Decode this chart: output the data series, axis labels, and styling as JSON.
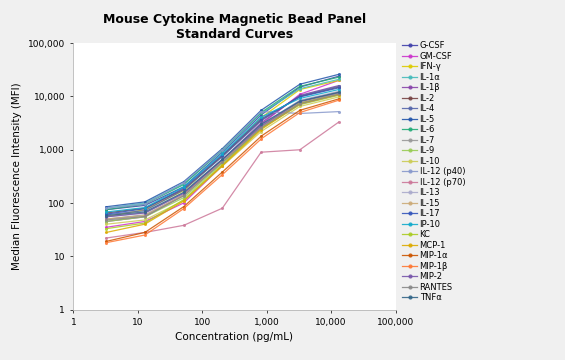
{
  "title": "Mouse Cytokine Magnetic Bead Panel\nStandard Curves",
  "xlabel": "Concentration (pg/mL)",
  "ylabel": "Median Fluorescence Intensity (MFI)",
  "xlim": [
    1,
    100000
  ],
  "ylim": [
    1,
    100000
  ],
  "x_points": [
    3.2,
    12.8,
    51.2,
    204.8,
    819.2,
    3276.8,
    13107.2
  ],
  "series": [
    {
      "label": "G-CSF",
      "color": "#4040aa",
      "marker": "o",
      "y": [
        75,
        90,
        200,
        900,
        4500,
        15000,
        24000
      ]
    },
    {
      "label": "GM-CSF",
      "color": "#cc33cc",
      "marker": "o",
      "y": [
        35,
        45,
        100,
        500,
        3000,
        11000,
        20000
      ]
    },
    {
      "label": "IFN-γ",
      "color": "#ddcc00",
      "marker": "o",
      "y": [
        55,
        75,
        170,
        780,
        4000,
        13500,
        20000
      ]
    },
    {
      "label": "IL-1α",
      "color": "#44bbbb",
      "marker": "o",
      "y": [
        80,
        100,
        230,
        950,
        4800,
        14000,
        21000
      ]
    },
    {
      "label": "IL-1β",
      "color": "#8844aa",
      "marker": "o",
      "y": [
        45,
        55,
        140,
        650,
        3200,
        10500,
        16000
      ]
    },
    {
      "label": "IL-2",
      "color": "#774444",
      "marker": "o",
      "y": [
        65,
        80,
        180,
        760,
        3600,
        10000,
        15000
      ]
    },
    {
      "label": "IL-4",
      "color": "#5566aa",
      "marker": "o",
      "y": [
        60,
        72,
        175,
        740,
        3500,
        10200,
        15500
      ]
    },
    {
      "label": "IL-5",
      "color": "#2255aa",
      "marker": "o",
      "y": [
        85,
        105,
        250,
        1050,
        5500,
        17000,
        26000
      ]
    },
    {
      "label": "IL-6",
      "color": "#22aa77",
      "marker": "o",
      "y": [
        75,
        95,
        220,
        1000,
        5000,
        15500,
        23000
      ]
    },
    {
      "label": "IL-7",
      "color": "#999999",
      "marker": "o",
      "y": [
        50,
        60,
        140,
        600,
        2700,
        7500,
        11500
      ]
    },
    {
      "label": "IL-9",
      "color": "#99cc55",
      "marker": "o",
      "y": [
        45,
        55,
        125,
        560,
        2500,
        7000,
        10500
      ]
    },
    {
      "label": "IL-10",
      "color": "#cccc55",
      "marker": "o",
      "y": [
        40,
        48,
        110,
        490,
        2200,
        6500,
        9800
      ]
    },
    {
      "label": "IL-12 (p40)",
      "color": "#8899cc",
      "marker": "o",
      "y": [
        80,
        95,
        240,
        1000,
        5200,
        4800,
        5200
      ]
    },
    {
      "label": "IL-12 (p70)",
      "color": "#cc7799",
      "marker": "o",
      "y": [
        22,
        28,
        38,
        80,
        900,
        1000,
        3300
      ]
    },
    {
      "label": "IL-13",
      "color": "#aaaacc",
      "marker": "o",
      "y": [
        55,
        65,
        155,
        660,
        2900,
        8500,
        12500
      ]
    },
    {
      "label": "IL-15",
      "color": "#ccaa77",
      "marker": "o",
      "y": [
        50,
        58,
        140,
        600,
        2700,
        8000,
        12000
      ]
    },
    {
      "label": "IL-17",
      "color": "#3355bb",
      "marker": "o",
      "y": [
        62,
        78,
        190,
        800,
        3800,
        9800,
        14500
      ]
    },
    {
      "label": "IP-10",
      "color": "#11aacc",
      "marker": "o",
      "y": [
        68,
        82,
        200,
        840,
        4100,
        9200,
        13500
      ]
    },
    {
      "label": "KC",
      "color": "#aacc22",
      "marker": "o",
      "y": [
        33,
        42,
        115,
        520,
        2500,
        7500,
        11000
      ]
    },
    {
      "label": "MCP-1",
      "color": "#ddaa00",
      "marker": "o",
      "y": [
        28,
        40,
        108,
        500,
        2400,
        7200,
        10800
      ]
    },
    {
      "label": "MIP-1α",
      "color": "#cc5500",
      "marker": "o",
      "y": [
        19,
        28,
        85,
        380,
        1800,
        5500,
        9000
      ]
    },
    {
      "label": "MIP-1β",
      "color": "#ff7733",
      "marker": "o",
      "y": [
        18,
        25,
        78,
        340,
        1600,
        5000,
        8500
      ]
    },
    {
      "label": "MIP-2",
      "color": "#7755aa",
      "marker": "o",
      "y": [
        55,
        65,
        150,
        640,
        2800,
        8000,
        11800
      ]
    },
    {
      "label": "RANTES",
      "color": "#888888",
      "marker": "o",
      "y": [
        48,
        56,
        135,
        580,
        2600,
        7300,
        11000
      ]
    },
    {
      "label": "TNFα",
      "color": "#336688",
      "marker": "o",
      "y": [
        58,
        68,
        158,
        660,
        3000,
        8200,
        12000
      ]
    }
  ],
  "background_color": "#f0f0f0",
  "plot_bg_color": "#ffffff",
  "title_fontsize": 9,
  "label_fontsize": 7.5,
  "legend_fontsize": 6.0
}
